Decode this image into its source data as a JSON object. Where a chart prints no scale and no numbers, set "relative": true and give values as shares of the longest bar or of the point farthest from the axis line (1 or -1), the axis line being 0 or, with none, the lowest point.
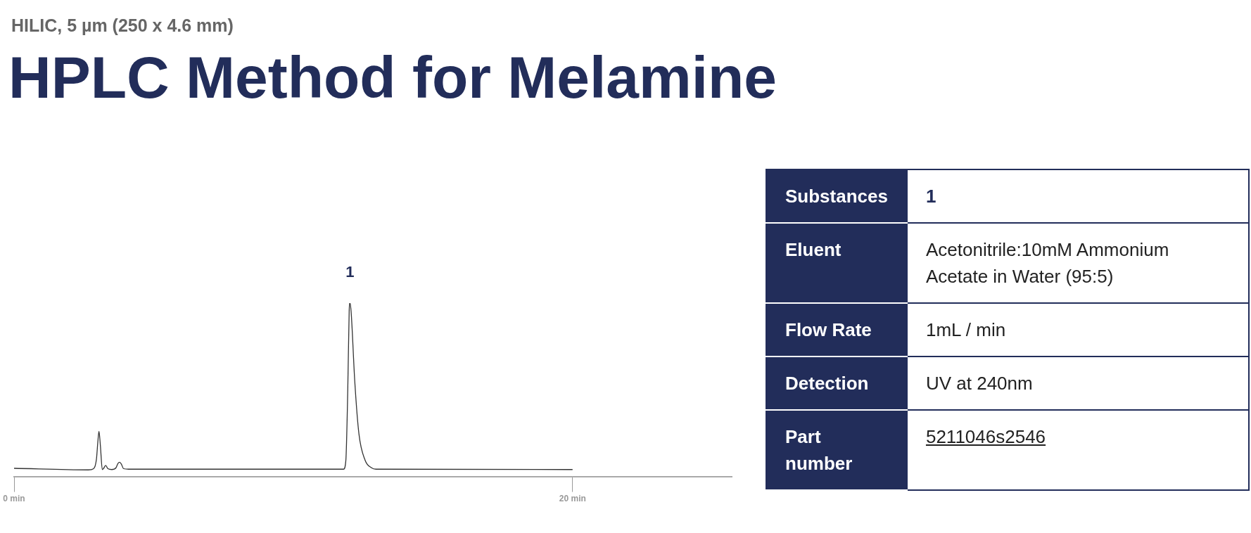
{
  "chart_data": [
    {
      "type": "line",
      "subtitle": "HILIC, 5 µm (250 x 4.6 mm)",
      "title": "HPLC Method for Melamine",
      "relative": true,
      "series": [
        {
          "color": "#333333",
          "x": [
            0,
            2.66,
            2.85,
            2.95,
            3.0,
            3.04,
            3.09,
            3.16,
            3.2,
            3.28,
            3.36,
            3.5,
            3.65,
            3.72,
            3.78,
            3.84,
            3.92,
            4.1,
            11.8,
            11.88,
            11.95,
            12.0,
            12.03,
            12.07,
            12.2,
            12.35,
            12.57,
            12.8,
            12.96,
            20
          ],
          "values": [
            0.047,
            0.038,
            0.045,
            0.1,
            0.2,
            0.26,
            0.18,
            0.04,
            0.045,
            0.064,
            0.045,
            0.04,
            0.05,
            0.075,
            0.082,
            0.072,
            0.045,
            0.042,
            0.042,
            0.09,
            0.5,
            0.95,
            1,
            0.95,
            0.55,
            0.245,
            0.094,
            0.05,
            0.042,
            0.04
          ]
        }
      ],
      "xlim": [
        0,
        25.7
      ],
      "xticks": [
        {
          "value": 0,
          "label": "0 min"
        },
        {
          "value": 20,
          "label": "20 min"
        }
      ],
      "grid": false,
      "legend": false,
      "marker": "none",
      "line_style": "solid",
      "annotations": [
        {
          "text": "1",
          "x": 12.03,
          "y": 1
        }
      ]
    },
    {
      "type": "other",
      "categories": [
        "Substances",
        "Eluent",
        "Flow Rate",
        "Detection",
        "Part number"
      ],
      "annotations": [
        "1",
        "Acetonitrile:10mM Ammonium Acetate in Water (95:5)",
        "1mL / min",
        "UV at 240nm",
        "5211046s2546"
      ]
    }
  ]
}
